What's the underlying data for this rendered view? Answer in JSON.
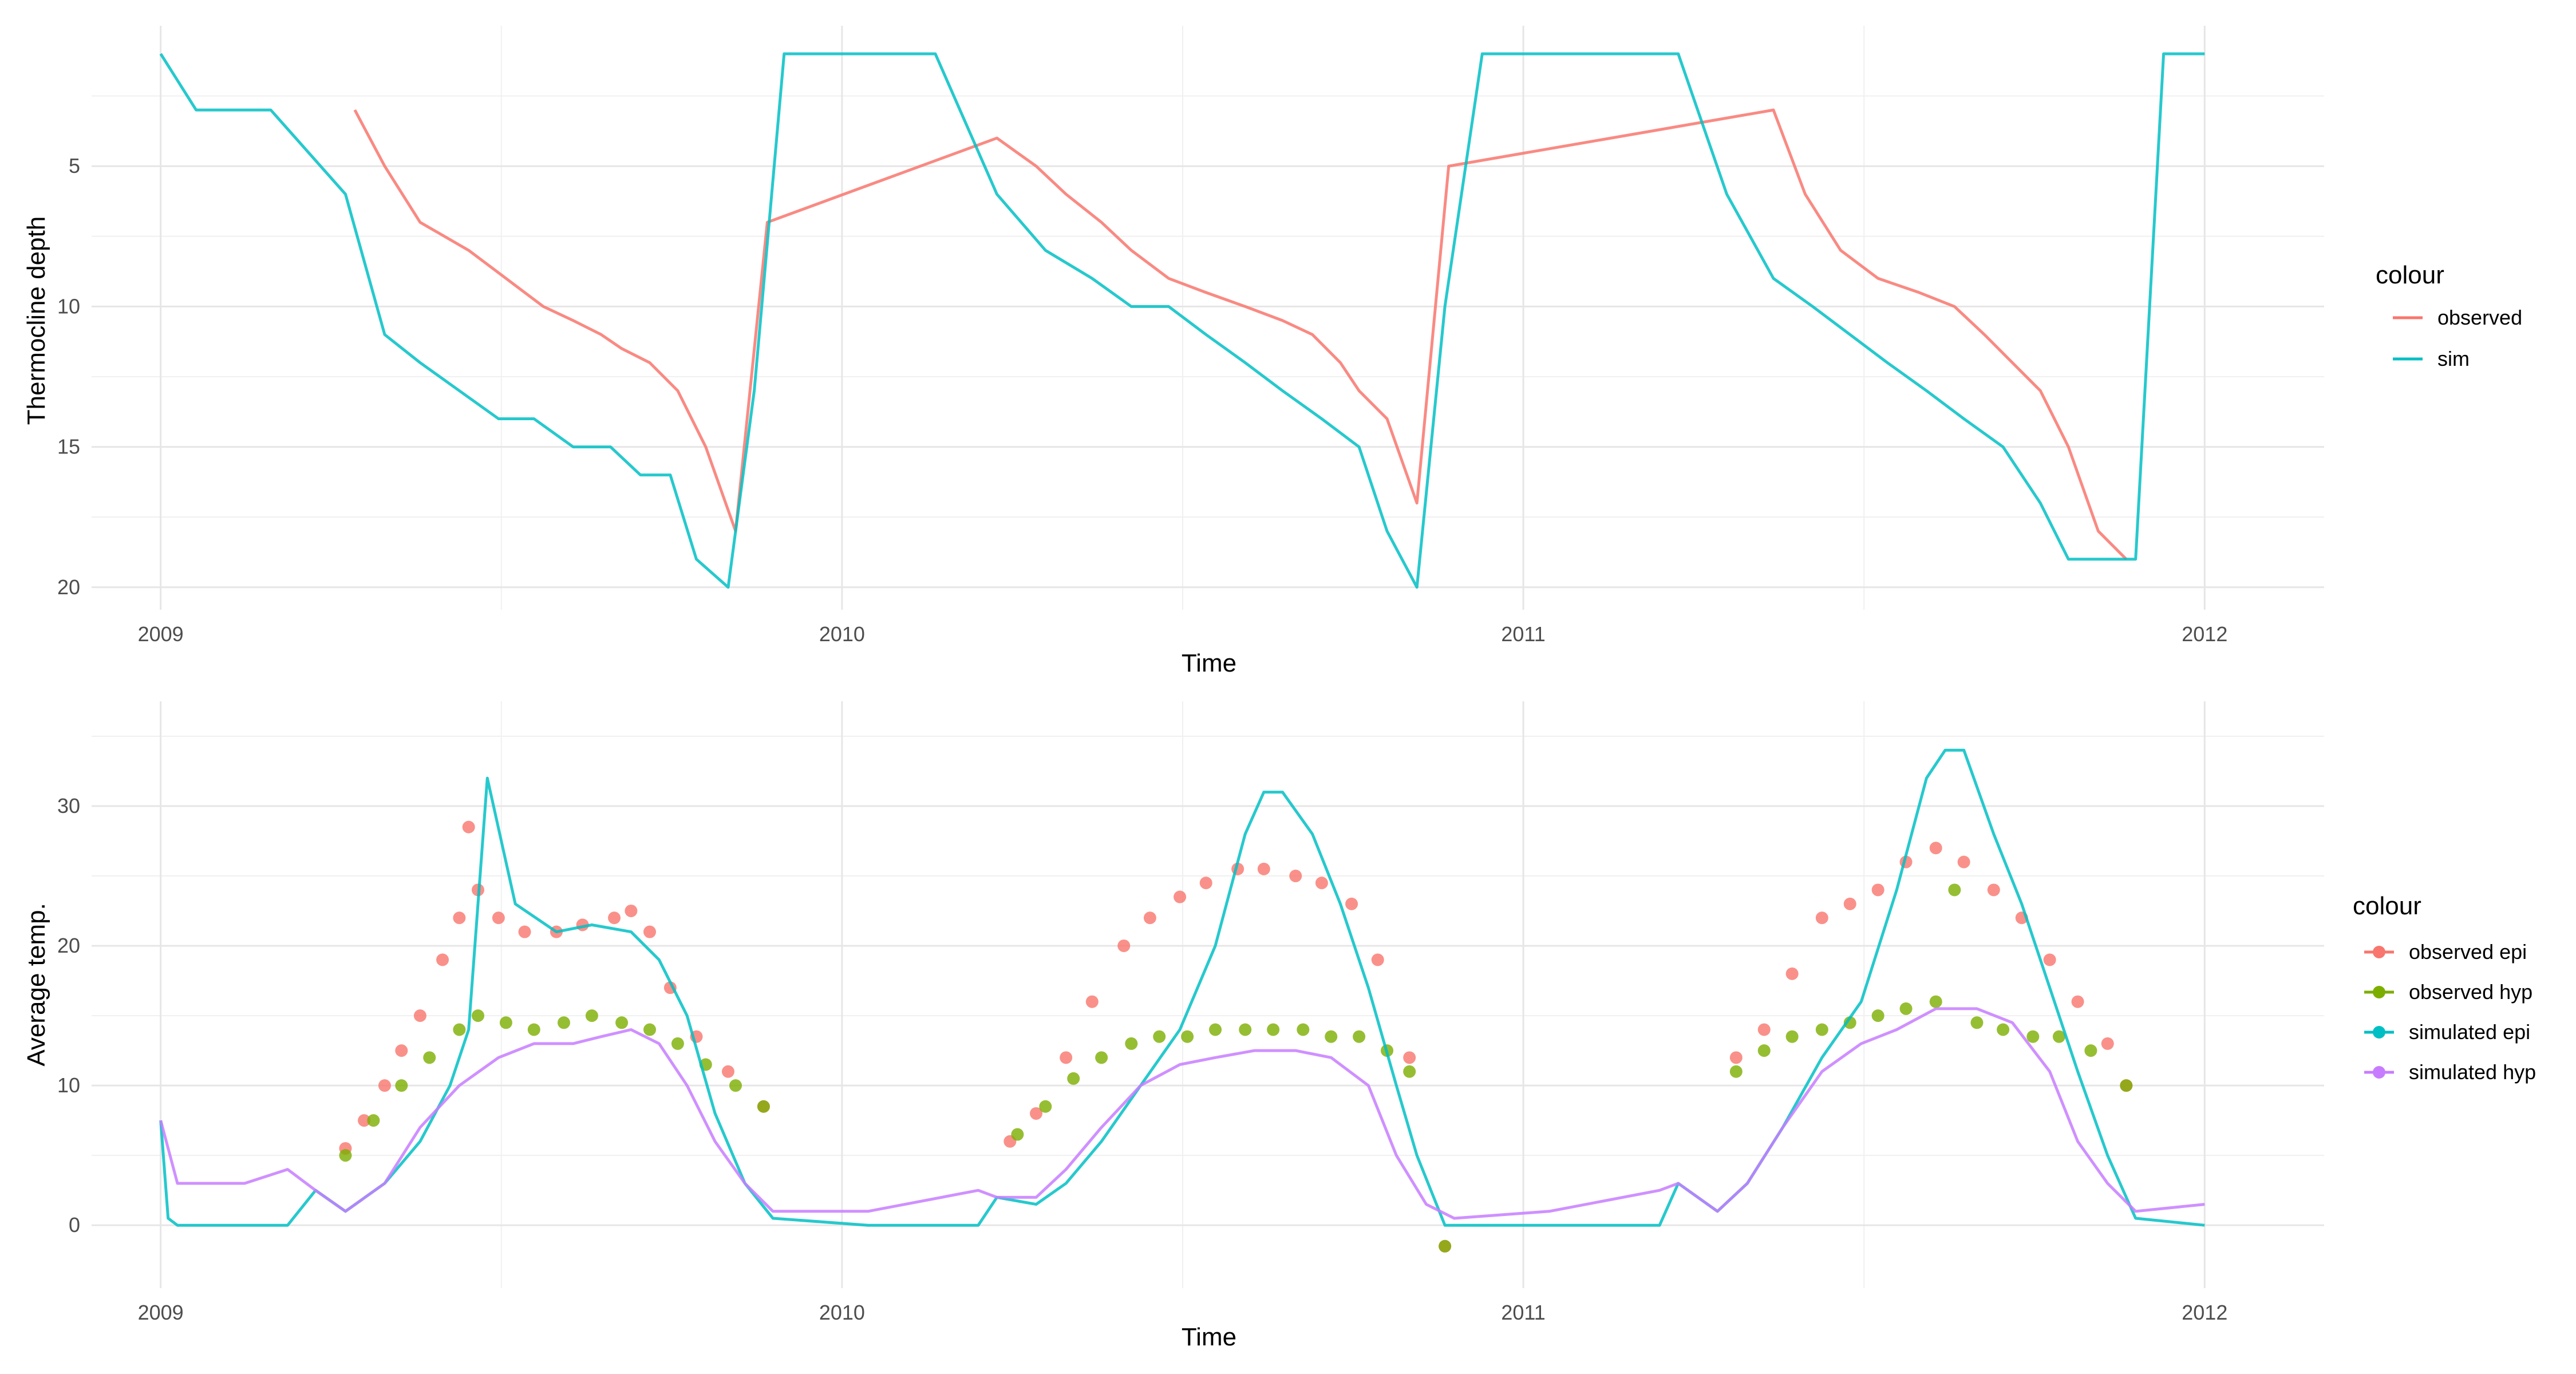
{
  "chart_data": [
    {
      "type": "line",
      "xlabel": "Time",
      "ylabel": "Thermocline depth",
      "x_type": "date",
      "xlim": [
        "2008-11-25",
        "2012-03-05"
      ],
      "x_ticks": [
        "2009",
        "2010",
        "2011",
        "2012"
      ],
      "y_reversed": true,
      "ylim": [
        20.8,
        0
      ],
      "y_ticks": [
        5,
        10,
        15,
        20
      ],
      "grid": true,
      "legend_title": "colour",
      "legend_position": "right",
      "series": [
        {
          "name": "observed",
          "color": "#F8766D",
          "style": "line",
          "note_values": "daily thermocline depth (m), approximate reading",
          "x": [
            "2009-04-15",
            "2009-05-01",
            "2009-05-20",
            "2009-06-15",
            "2009-07-05",
            "2009-07-25",
            "2009-08-10",
            "2009-08-25",
            "2009-09-05",
            "2009-09-20",
            "2009-10-05",
            "2009-10-20",
            "2009-11-05",
            "2009-11-22",
            "2010-03-25",
            "2010-04-15",
            "2010-05-01",
            "2010-05-20",
            "2010-06-05",
            "2010-06-25",
            "2010-07-15",
            "2010-08-05",
            "2010-08-25",
            "2010-09-10",
            "2010-09-25",
            "2010-10-05",
            "2010-10-20",
            "2010-11-05",
            "2010-11-22",
            "2011-05-15",
            "2011-06-01",
            "2011-06-20",
            "2011-07-10",
            "2011-08-01",
            "2011-08-20",
            "2011-09-05",
            "2011-09-20",
            "2011-10-05",
            "2011-10-20",
            "2011-11-05",
            "2011-11-20"
          ],
          "y": [
            3,
            5,
            7,
            8,
            9,
            10,
            10.5,
            11,
            11.5,
            12,
            13,
            15,
            18,
            7,
            4,
            5,
            6,
            7,
            8,
            9,
            9.5,
            10,
            10.5,
            11,
            12,
            13,
            14,
            17,
            5,
            3,
            6,
            8,
            9,
            9.5,
            10,
            11,
            12,
            13,
            15,
            18,
            19
          ]
        },
        {
          "name": "sim",
          "color": "#00BFC4",
          "style": "line",
          "note_values": "daily thermocline depth (m), approximate reading",
          "x": [
            "2009-01-01",
            "2009-01-20",
            "2009-03-01",
            "2009-04-10",
            "2009-05-01",
            "2009-05-20",
            "2009-06-10",
            "2009-07-01",
            "2009-07-20",
            "2009-08-10",
            "2009-08-30",
            "2009-09-15",
            "2009-10-01",
            "2009-10-15",
            "2009-11-01",
            "2009-11-15",
            "2009-12-01",
            "2010-01-10",
            "2010-02-20",
            "2010-03-25",
            "2010-04-20",
            "2010-05-15",
            "2010-06-05",
            "2010-06-25",
            "2010-07-15",
            "2010-08-05",
            "2010-08-25",
            "2010-09-15",
            "2010-10-05",
            "2010-10-20",
            "2010-11-05",
            "2010-11-20",
            "2010-12-10",
            "2011-02-01",
            "2011-03-25",
            "2011-04-20",
            "2011-05-15",
            "2011-06-05",
            "2011-06-25",
            "2011-07-15",
            "2011-08-05",
            "2011-08-25",
            "2011-09-15",
            "2011-10-05",
            "2011-10-20",
            "2011-11-10",
            "2011-11-25",
            "2011-12-10",
            "2012-01-01"
          ],
          "y": [
            1,
            3,
            3,
            6,
            11,
            12,
            13,
            14,
            14,
            15,
            15,
            16,
            16,
            19,
            20,
            13,
            1,
            1,
            1,
            6,
            8,
            9,
            10,
            10,
            11,
            12,
            13,
            14,
            15,
            18,
            20,
            10,
            1,
            1,
            1,
            6,
            9,
            10,
            11,
            12,
            13,
            14,
            15,
            17,
            19,
            19,
            19,
            1,
            1
          ]
        }
      ]
    },
    {
      "type": "scatter",
      "xlabel": "Time",
      "ylabel": "Average temp.",
      "x_type": "date",
      "xlim": [
        "2008-11-25",
        "2012-03-05"
      ],
      "x_ticks": [
        "2009",
        "2010",
        "2011",
        "2012"
      ],
      "ylim": [
        -4.5,
        37.5
      ],
      "y_ticks": [
        0,
        10,
        20,
        30
      ],
      "grid": true,
      "legend_title": "colour",
      "legend_position": "right",
      "series": [
        {
          "name": "observed epi",
          "color": "#F8766D",
          "style": "points",
          "note_values": "daily average epilimnion temperature (°C), approximate reading",
          "x": [
            "2009-04-10",
            "2009-04-20",
            "2009-05-01",
            "2009-05-10",
            "2009-05-20",
            "2009-06-01",
            "2009-06-10",
            "2009-06-15",
            "2009-06-20",
            "2009-07-01",
            "2009-07-15",
            "2009-08-01",
            "2009-08-15",
            "2009-09-01",
            "2009-09-10",
            "2009-09-20",
            "2009-10-01",
            "2009-10-15",
            "2009-11-01",
            "2009-11-20",
            "2010-04-01",
            "2010-04-15",
            "2010-05-01",
            "2010-05-15",
            "2010-06-01",
            "2010-06-15",
            "2010-07-01",
            "2010-07-15",
            "2010-08-01",
            "2010-08-15",
            "2010-09-01",
            "2010-09-15",
            "2010-10-01",
            "2010-10-15",
            "2010-11-01",
            "2010-11-20",
            "2011-04-25",
            "2011-05-10",
            "2011-05-25",
            "2011-06-10",
            "2011-06-25",
            "2011-07-10",
            "2011-07-25",
            "2011-08-10",
            "2011-08-25",
            "2011-09-10",
            "2011-09-25",
            "2011-10-10",
            "2011-10-25",
            "2011-11-10",
            "2011-11-20"
          ],
          "y": [
            5.5,
            7.5,
            10,
            12.5,
            15,
            19,
            22,
            28.5,
            24,
            22,
            21,
            21,
            21.5,
            22,
            22.5,
            21,
            17,
            13.5,
            11,
            8.5,
            6,
            8,
            12,
            16,
            20,
            22,
            23.5,
            24.5,
            25.5,
            25.5,
            25,
            24.5,
            23,
            19,
            12,
            -1.5,
            12,
            14,
            18,
            22,
            23,
            24,
            26,
            27,
            26,
            24,
            22,
            19,
            16,
            13,
            10
          ]
        },
        {
          "name": "observed hyp",
          "color": "#7CAE00",
          "style": "points",
          "note_values": "daily average hypolimnion temperature (°C), approximate reading",
          "x": [
            "2009-04-10",
            "2009-04-25",
            "2009-05-10",
            "2009-05-25",
            "2009-06-10",
            "2009-06-20",
            "2009-07-05",
            "2009-07-20",
            "2009-08-05",
            "2009-08-20",
            "2009-09-05",
            "2009-09-20",
            "2009-10-05",
            "2009-10-20",
            "2009-11-05",
            "2009-11-20",
            "2010-04-05",
            "2010-04-20",
            "2010-05-05",
            "2010-05-20",
            "2010-06-05",
            "2010-06-20",
            "2010-07-05",
            "2010-07-20",
            "2010-08-05",
            "2010-08-20",
            "2010-09-05",
            "2010-09-20",
            "2010-10-05",
            "2010-10-20",
            "2010-11-01",
            "2010-11-20",
            "2011-04-25",
            "2011-05-10",
            "2011-05-25",
            "2011-06-10",
            "2011-06-25",
            "2011-07-10",
            "2011-07-25",
            "2011-08-10",
            "2011-08-20",
            "2011-09-01",
            "2011-09-15",
            "2011-10-01",
            "2011-10-15",
            "2011-11-01",
            "2011-11-20"
          ],
          "y": [
            5,
            7.5,
            10,
            12,
            14,
            15,
            14.5,
            14,
            14.5,
            15,
            14.5,
            14,
            13,
            11.5,
            10,
            8.5,
            6.5,
            8.5,
            10.5,
            12,
            13,
            13.5,
            13.5,
            14,
            14,
            14,
            14,
            13.5,
            13.5,
            12.5,
            11,
            -1.5,
            11,
            12.5,
            13.5,
            14,
            14.5,
            15,
            15.5,
            16,
            24,
            14.5,
            14,
            13.5,
            13.5,
            12.5,
            10
          ]
        },
        {
          "name": "simulated epi",
          "color": "#00BFC4",
          "style": "line",
          "note_values": "daily average epilimnion temperature (°C), approximate reading",
          "x": [
            "2009-01-01",
            "2009-01-05",
            "2009-01-10",
            "2009-02-15",
            "2009-03-10",
            "2009-03-25",
            "2009-04-10",
            "2009-05-01",
            "2009-05-20",
            "2009-06-05",
            "2009-06-15",
            "2009-06-25",
            "2009-07-10",
            "2009-08-01",
            "2009-08-20",
            "2009-09-10",
            "2009-09-25",
            "2009-10-10",
            "2009-10-25",
            "2009-11-10",
            "2009-11-25",
            "2010-01-15",
            "2010-03-15",
            "2010-03-25",
            "2010-04-15",
            "2010-05-01",
            "2010-05-20",
            "2010-06-10",
            "2010-07-01",
            "2010-07-20",
            "2010-08-05",
            "2010-08-15",
            "2010-08-25",
            "2010-09-10",
            "2010-09-25",
            "2010-10-10",
            "2010-10-25",
            "2010-11-05",
            "2010-11-20",
            "2011-01-15",
            "2011-03-15",
            "2011-03-25",
            "2011-04-15",
            "2011-05-01",
            "2011-05-20",
            "2011-06-10",
            "2011-07-01",
            "2011-07-20",
            "2011-08-05",
            "2011-08-15",
            "2011-08-25",
            "2011-09-10",
            "2011-09-25",
            "2011-10-10",
            "2011-10-25",
            "2011-11-10",
            "2011-11-25",
            "2012-01-01"
          ],
          "y": [
            7.5,
            0.5,
            0,
            0,
            0,
            2.5,
            1,
            3,
            6,
            10,
            14,
            32,
            23,
            21,
            21.5,
            21,
            19,
            15,
            8,
            3,
            0.5,
            0,
            0,
            2,
            1.5,
            3,
            6,
            10,
            14,
            20,
            28,
            31,
            31,
            28,
            23,
            17,
            10,
            5,
            0,
            0,
            0,
            3,
            1,
            3,
            7,
            12,
            16,
            24,
            32,
            34,
            34,
            28,
            23,
            17,
            11,
            5,
            0.5,
            0
          ]
        },
        {
          "name": "simulated hyp",
          "color": "#C77CFF",
          "style": "line",
          "note_values": "daily average hypolimnion temperature (°C), approximate reading",
          "x": [
            "2009-01-01",
            "2009-01-10",
            "2009-02-15",
            "2009-03-10",
            "2009-03-25",
            "2009-04-10",
            "2009-05-01",
            "2009-05-20",
            "2009-06-10",
            "2009-07-01",
            "2009-07-20",
            "2009-08-10",
            "2009-08-25",
            "2009-09-10",
            "2009-09-25",
            "2009-10-10",
            "2009-10-25",
            "2009-11-10",
            "2009-11-25",
            "2010-01-15",
            "2010-03-15",
            "2010-03-25",
            "2010-04-15",
            "2010-05-01",
            "2010-05-20",
            "2010-06-10",
            "2010-07-01",
            "2010-07-20",
            "2010-08-10",
            "2010-09-01",
            "2010-09-20",
            "2010-10-10",
            "2010-10-25",
            "2010-11-10",
            "2010-11-25",
            "2011-01-15",
            "2011-03-15",
            "2011-03-25",
            "2011-04-15",
            "2011-05-01",
            "2011-05-20",
            "2011-06-10",
            "2011-07-01",
            "2011-07-20",
            "2011-08-10",
            "2011-09-01",
            "2011-09-20",
            "2011-10-10",
            "2011-10-25",
            "2011-11-10",
            "2011-11-25",
            "2012-01-01"
          ],
          "y": [
            7.5,
            3,
            3,
            4,
            2.5,
            1,
            3,
            7,
            10,
            12,
            13,
            13,
            13.5,
            14,
            13,
            10,
            6,
            3,
            1,
            1,
            2.5,
            2,
            2,
            4,
            7,
            10,
            11.5,
            12,
            12.5,
            12.5,
            12,
            10,
            5,
            1.5,
            0.5,
            1,
            2.5,
            3,
            1,
            3,
            7,
            11,
            13,
            14,
            15.5,
            15.5,
            14.5,
            11,
            6,
            3,
            1,
            1.5
          ]
        }
      ]
    }
  ]
}
